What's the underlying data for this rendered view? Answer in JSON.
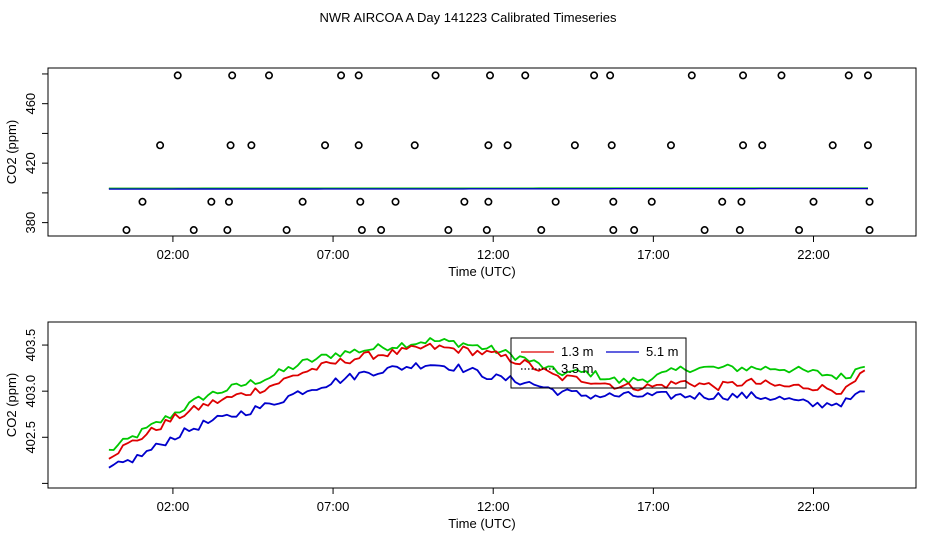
{
  "figure_title": "NWR AIRCOA A  Day 141223  Calibrated Timeseries",
  "colors": {
    "green": "#00c800",
    "red": "#dd0000",
    "blue": "#0000cc",
    "black": "#000000"
  },
  "chart_data": [
    {
      "type": "scatter",
      "title": "",
      "xlabel": "Time (UTC)",
      "ylabel": "CO2 (ppm)",
      "xlim": [
        -1.9,
        25.2
      ],
      "ylim": [
        371,
        484
      ],
      "xticks": [
        2,
        7,
        12,
        17,
        22
      ],
      "xtick_labels": [
        "02:00",
        "07:00",
        "12:00",
        "17:00",
        "22:00"
      ],
      "yticks": [
        380,
        420,
        460
      ],
      "ytick_labels": [
        "380",
        "420",
        "460"
      ],
      "extra_ytick_values": [
        400,
        440,
        480
      ],
      "points": [
        {
          "x": 2.15,
          "y": 479
        },
        {
          "x": 3.85,
          "y": 479
        },
        {
          "x": 5.0,
          "y": 479
        },
        {
          "x": 7.25,
          "y": 479
        },
        {
          "x": 7.8,
          "y": 479
        },
        {
          "x": 10.2,
          "y": 479
        },
        {
          "x": 11.9,
          "y": 479
        },
        {
          "x": 13.0,
          "y": 479
        },
        {
          "x": 15.15,
          "y": 479
        },
        {
          "x": 15.65,
          "y": 479
        },
        {
          "x": 18.2,
          "y": 479
        },
        {
          "x": 19.8,
          "y": 479
        },
        {
          "x": 21.0,
          "y": 479
        },
        {
          "x": 23.1,
          "y": 479
        },
        {
          "x": 23.7,
          "y": 479
        },
        {
          "x": 1.6,
          "y": 432
        },
        {
          "x": 3.8,
          "y": 432
        },
        {
          "x": 4.45,
          "y": 432
        },
        {
          "x": 6.75,
          "y": 432
        },
        {
          "x": 7.8,
          "y": 432
        },
        {
          "x": 9.55,
          "y": 432
        },
        {
          "x": 11.85,
          "y": 432
        },
        {
          "x": 12.45,
          "y": 432
        },
        {
          "x": 14.55,
          "y": 432
        },
        {
          "x": 15.7,
          "y": 432
        },
        {
          "x": 17.55,
          "y": 432
        },
        {
          "x": 19.8,
          "y": 432
        },
        {
          "x": 20.4,
          "y": 432
        },
        {
          "x": 22.6,
          "y": 432
        },
        {
          "x": 23.7,
          "y": 432
        },
        {
          "x": 1.05,
          "y": 394
        },
        {
          "x": 3.2,
          "y": 394
        },
        {
          "x": 3.75,
          "y": 394
        },
        {
          "x": 6.05,
          "y": 394
        },
        {
          "x": 7.85,
          "y": 394
        },
        {
          "x": 8.95,
          "y": 394
        },
        {
          "x": 11.1,
          "y": 394
        },
        {
          "x": 11.85,
          "y": 394
        },
        {
          "x": 13.95,
          "y": 394
        },
        {
          "x": 15.75,
          "y": 394
        },
        {
          "x": 16.95,
          "y": 394
        },
        {
          "x": 19.15,
          "y": 394
        },
        {
          "x": 19.75,
          "y": 394
        },
        {
          "x": 22.0,
          "y": 394
        },
        {
          "x": 23.75,
          "y": 394
        },
        {
          "x": 0.55,
          "y": 375
        },
        {
          "x": 2.65,
          "y": 375
        },
        {
          "x": 3.7,
          "y": 375
        },
        {
          "x": 5.55,
          "y": 375
        },
        {
          "x": 7.9,
          "y": 375
        },
        {
          "x": 8.5,
          "y": 375
        },
        {
          "x": 10.6,
          "y": 375
        },
        {
          "x": 11.8,
          "y": 375
        },
        {
          "x": 13.5,
          "y": 375
        },
        {
          "x": 15.75,
          "y": 375
        },
        {
          "x": 16.4,
          "y": 375
        },
        {
          "x": 18.6,
          "y": 375
        },
        {
          "x": 19.7,
          "y": 375
        },
        {
          "x": 21.55,
          "y": 375
        },
        {
          "x": 23.75,
          "y": 375
        }
      ],
      "series": [
        {
          "name": "1.3 m",
          "color": "#dd0000",
          "x": [
            0.0,
            23.7
          ],
          "values": [
            402.9,
            403.05
          ]
        },
        {
          "name": "3.5 m",
          "color": "#00c800",
          "x": [
            0.0,
            23.7
          ],
          "values": [
            403.1,
            403.25
          ]
        },
        {
          "name": "5.1 m",
          "color": "#0000cc",
          "x": [
            0.0,
            23.7
          ],
          "values": [
            402.55,
            402.9
          ]
        }
      ]
    },
    {
      "type": "line",
      "title": "",
      "xlabel": "Time (UTC)",
      "ylabel": "CO2 (ppm)",
      "xlim": [
        -1.9,
        25.2
      ],
      "ylim": [
        401.95,
        403.75
      ],
      "xticks": [
        2,
        7,
        12,
        17,
        22
      ],
      "xtick_labels": [
        "02:00",
        "07:00",
        "12:00",
        "17:00",
        "22:00"
      ],
      "yticks": [
        402.5,
        403.0,
        403.5
      ],
      "ytick_labels": [
        "402.5",
        "403.0",
        "403.5"
      ],
      "extra_ytick_values": [
        402.0
      ],
      "legend": {
        "placement": "center",
        "entries": [
          {
            "label": "1.3 m",
            "color": "#dd0000"
          },
          {
            "label": "5.1 m",
            "color": "#0000cc"
          },
          {
            "label": "3.5 m",
            "color": "#000000",
            "style": "dotted"
          }
        ]
      },
      "series": [
        {
          "name": "3.5 m",
          "color": "#00c800",
          "x": [
            0,
            1,
            2,
            3,
            4,
            5,
            6,
            7,
            8,
            9,
            10,
            11,
            12,
            13,
            14,
            15,
            16,
            17,
            18,
            19,
            20,
            21,
            22,
            23,
            23.6
          ],
          "values": [
            402.35,
            402.55,
            402.75,
            402.95,
            403.05,
            403.15,
            403.3,
            403.4,
            403.45,
            403.5,
            403.55,
            403.52,
            403.45,
            403.35,
            403.2,
            403.2,
            403.1,
            403.15,
            403.25,
            403.25,
            403.25,
            403.25,
            403.2,
            403.15,
            403.3
          ]
        },
        {
          "name": "1.3 m",
          "color": "#dd0000",
          "x": [
            0,
            1,
            2,
            3,
            4,
            5,
            6,
            7,
            8,
            9,
            10,
            11,
            12,
            13,
            14,
            15,
            16,
            17,
            18,
            19,
            20,
            21,
            22,
            23,
            23.6
          ],
          "values": [
            402.3,
            402.5,
            402.7,
            402.85,
            402.95,
            403.05,
            403.2,
            403.3,
            403.38,
            403.42,
            403.48,
            403.45,
            403.4,
            403.3,
            403.15,
            403.12,
            403.05,
            403.05,
            403.1,
            403.05,
            403.1,
            403.05,
            403.05,
            403.0,
            403.2
          ]
        },
        {
          "name": "5.1 m",
          "color": "#0000cc",
          "x": [
            0,
            1,
            2,
            3,
            4,
            5,
            6,
            7,
            8,
            9,
            10,
            11,
            12,
            13,
            14,
            15,
            16,
            17,
            18,
            19,
            20,
            21,
            22,
            23,
            23.6
          ],
          "values": [
            402.15,
            402.3,
            402.5,
            402.65,
            402.75,
            402.85,
            403.0,
            403.1,
            403.2,
            403.25,
            403.3,
            403.25,
            403.15,
            403.1,
            403.0,
            402.95,
            402.95,
            402.95,
            402.95,
            402.95,
            402.95,
            402.92,
            402.85,
            402.88,
            403.0
          ]
        }
      ]
    }
  ]
}
